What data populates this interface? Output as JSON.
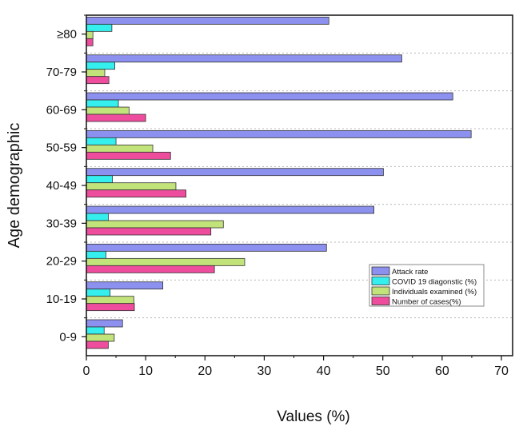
{
  "chart_data": {
    "type": "bar",
    "orientation": "horizontal",
    "title": "",
    "xlabel": "Values (%)",
    "ylabel": "Age demographic",
    "xlim": [
      0,
      70
    ],
    "xticks": [
      0,
      10,
      20,
      30,
      40,
      50,
      60,
      70
    ],
    "grid": "horizontal dotted between categories",
    "legend_position": "center-right",
    "categories": [
      "0-9",
      "10-19",
      "20-29",
      "30-39",
      "40-49",
      "50-59",
      "60-69",
      "70-79",
      "≥80"
    ],
    "series": [
      {
        "name": "Attack rate",
        "color": "#8c90ee",
        "values": [
          6.1,
          12.9,
          40.5,
          48.5,
          50.1,
          64.9,
          61.8,
          53.2,
          40.9
        ]
      },
      {
        "name": "COVID 19 diagonstic (%)",
        "color": "#35eeee",
        "values": [
          3.0,
          4.0,
          3.3,
          3.7,
          4.4,
          5.0,
          5.4,
          4.8,
          4.3
        ]
      },
      {
        "name": "Individuals examined (%)",
        "color": "#c2e27a",
        "values": [
          4.7,
          8.0,
          26.7,
          23.1,
          15.1,
          11.2,
          7.2,
          3.1,
          1.1
        ]
      },
      {
        "name": "Number of cases(%)",
        "color": "#ee4c9c",
        "values": [
          3.7,
          8.1,
          21.6,
          21.0,
          16.8,
          14.2,
          10.0,
          3.8,
          1.1
        ]
      }
    ]
  }
}
